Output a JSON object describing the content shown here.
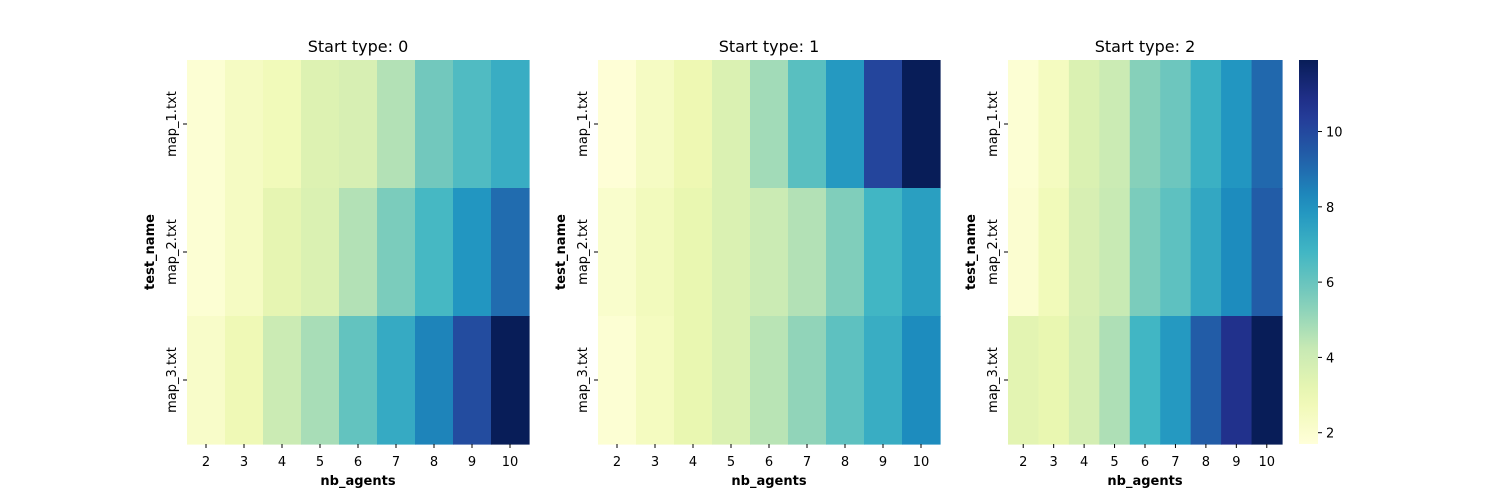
{
  "chart_data": {
    "type": "heatmap",
    "colormap": "YlGnBu",
    "vmin": 1.7,
    "vmax": 11.9,
    "colorbar": {
      "ticks": [
        2,
        4,
        6,
        8,
        10
      ],
      "tick_labels": [
        "2",
        "4",
        "6",
        "8",
        "10"
      ]
    },
    "xlabel": "nb_agents",
    "ylabel": "test_name",
    "x": [
      "2",
      "3",
      "4",
      "5",
      "6",
      "7",
      "8",
      "9",
      "10"
    ],
    "y": [
      "map_1.txt",
      "map_2.txt",
      "map_3.txt"
    ],
    "panels": [
      {
        "title": "Start type: 0",
        "values": [
          [
            1.9,
            2.4,
            2.7,
            3.5,
            3.7,
            4.6,
            5.8,
            6.5,
            7.1
          ],
          [
            1.9,
            2.4,
            3.2,
            3.6,
            4.6,
            5.6,
            6.7,
            7.9,
            9.0
          ],
          [
            2.2,
            2.8,
            4.1,
            4.8,
            6.1,
            7.2,
            8.4,
            9.9,
            11.9
          ]
        ]
      },
      {
        "title": "Start type: 1",
        "values": [
          [
            1.8,
            2.4,
            2.9,
            3.6,
            4.9,
            6.3,
            7.8,
            10.1,
            11.9
          ],
          [
            2.1,
            2.6,
            3.1,
            3.6,
            4.1,
            4.6,
            5.5,
            6.8,
            7.6
          ],
          [
            1.9,
            2.5,
            3.1,
            3.6,
            4.5,
            5.2,
            6.2,
            7.1,
            8.2
          ]
        ]
      },
      {
        "title": "Start type: 2",
        "values": [
          [
            1.9,
            2.5,
            3.6,
            4.1,
            5.4,
            5.9,
            7.0,
            7.9,
            9.1
          ],
          [
            2.0,
            2.7,
            3.7,
            4.2,
            5.6,
            6.2,
            7.3,
            8.2,
            9.4
          ],
          [
            3.3,
            3.1,
            3.8,
            4.7,
            6.8,
            7.8,
            9.4,
            10.8,
            11.9
          ]
        ]
      }
    ]
  }
}
